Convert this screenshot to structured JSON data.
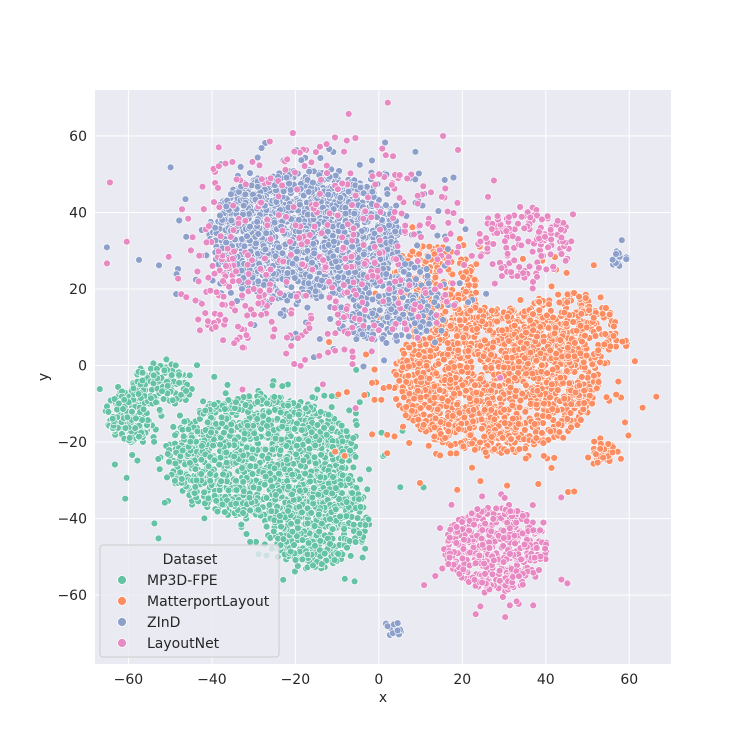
{
  "chart_data": {
    "type": "scatter",
    "title": "",
    "xlabel": "x",
    "ylabel": "y",
    "xlim": [
      -68,
      70
    ],
    "ylim": [
      -78,
      72
    ],
    "xticks": [
      -60,
      -40,
      -20,
      0,
      20,
      40,
      60
    ],
    "yticks": [
      -60,
      -40,
      -20,
      0,
      20,
      40,
      60
    ],
    "grid": true,
    "legend": {
      "title": "Dataset",
      "placement": "lower-left"
    },
    "series": [
      {
        "name": "MP3D-FPE",
        "color": "#66c2a5",
        "clusters": [
          {
            "cx": -28,
            "cy": -24,
            "rx": 24,
            "ry": 17,
            "count": 1300
          },
          {
            "cx": -15,
            "cy": -40,
            "rx": 13,
            "ry": 14,
            "count": 520
          },
          {
            "cx": -60,
            "cy": -13,
            "rx": 6,
            "ry": 7,
            "count": 150
          },
          {
            "cx": -52,
            "cy": -5,
            "rx": 8,
            "ry": 6,
            "count": 120
          }
        ]
      },
      {
        "name": "MatterportLayout",
        "color": "#fc8d62",
        "clusters": [
          {
            "cx": 28,
            "cy": -4,
            "rx": 26,
            "ry": 20,
            "count": 1500
          },
          {
            "cx": 13,
            "cy": 20,
            "rx": 11,
            "ry": 13,
            "count": 250
          },
          {
            "cx": 45,
            "cy": 8,
            "rx": 13,
            "ry": 12,
            "count": 280
          },
          {
            "cx": 54,
            "cy": -23,
            "rx": 3,
            "ry": 3,
            "count": 40
          }
        ]
      },
      {
        "name": "ZInD",
        "color": "#8da0cb",
        "clusters": [
          {
            "cx": -18,
            "cy": 34,
            "rx": 24,
            "ry": 18,
            "count": 1800
          },
          {
            "cx": 2,
            "cy": 17,
            "rx": 13,
            "ry": 12,
            "count": 350
          },
          {
            "cx": 4,
            "cy": -69,
            "rx": 2.2,
            "ry": 2.2,
            "count": 14
          },
          {
            "cx": 57,
            "cy": 28,
            "rx": 2.5,
            "ry": 2.4,
            "count": 16
          }
        ]
      },
      {
        "name": "LayoutNet",
        "color": "#e78ac3",
        "clusters": [
          {
            "cx": 28,
            "cy": -48,
            "rx": 13,
            "ry": 12,
            "count": 450
          },
          {
            "cx": -14,
            "cy": 30,
            "rx": 38,
            "ry": 32,
            "count": 360
          },
          {
            "cx": 35,
            "cy": 32,
            "rx": 12,
            "ry": 10,
            "count": 150
          },
          {
            "cx": -35,
            "cy": 18,
            "rx": 8,
            "ry": 14,
            "count": 60
          }
        ]
      }
    ]
  }
}
